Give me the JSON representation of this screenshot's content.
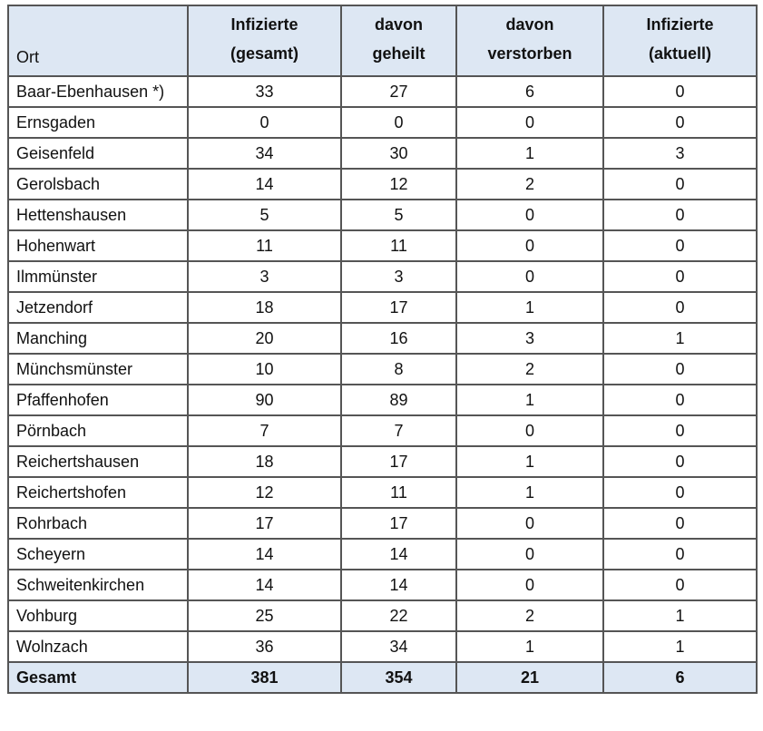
{
  "table": {
    "header": [
      [
        "Ort"
      ],
      [
        "Infizierte",
        "(gesamt)"
      ],
      [
        "davon",
        "geheilt"
      ],
      [
        "davon",
        "verstorben"
      ],
      [
        "Infizierte",
        "(aktuell)"
      ]
    ],
    "rows": [
      [
        "Baar-Ebenhausen *)",
        33,
        27,
        6,
        0
      ],
      [
        "Ernsgaden",
        0,
        0,
        0,
        0
      ],
      [
        "Geisenfeld",
        34,
        30,
        1,
        3
      ],
      [
        "Gerolsbach",
        14,
        12,
        2,
        0
      ],
      [
        "Hettenshausen",
        5,
        5,
        0,
        0
      ],
      [
        "Hohenwart",
        11,
        11,
        0,
        0
      ],
      [
        "Ilmmünster",
        3,
        3,
        0,
        0
      ],
      [
        "Jetzendorf",
        18,
        17,
        1,
        0
      ],
      [
        "Manching",
        20,
        16,
        3,
        1
      ],
      [
        "Münchsmünster",
        10,
        8,
        2,
        0
      ],
      [
        "Pfaffenhofen",
        90,
        89,
        1,
        0
      ],
      [
        "Pörnbach",
        7,
        7,
        0,
        0
      ],
      [
        "Reichertshausen",
        18,
        17,
        1,
        0
      ],
      [
        "Reichertshofen",
        12,
        11,
        1,
        0
      ],
      [
        "Rohrbach",
        17,
        17,
        0,
        0
      ],
      [
        "Scheyern",
        14,
        14,
        0,
        0
      ],
      [
        "Schweitenkirchen",
        14,
        14,
        0,
        0
      ],
      [
        "Vohburg",
        25,
        22,
        2,
        1
      ],
      [
        "Wolnzach",
        36,
        34,
        1,
        1
      ]
    ],
    "total": [
      "Gesamt",
      381,
      354,
      21,
      6
    ]
  }
}
